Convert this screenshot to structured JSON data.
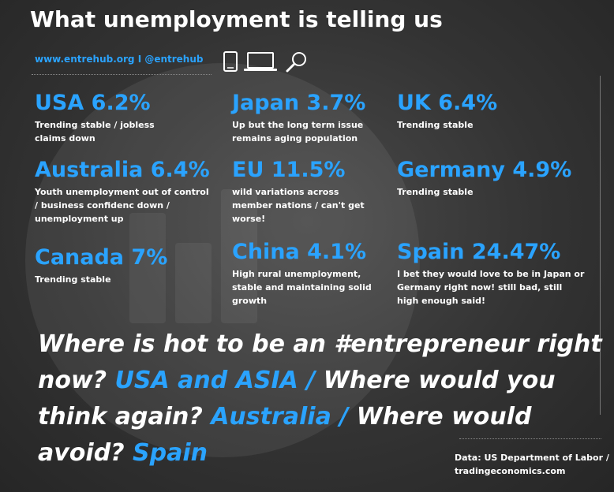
{
  "header": {
    "title": "What unemployment is telling us",
    "site": "www.entrehub.org I @entrehub"
  },
  "icons": [
    "tablet-icon",
    "laptop-icon",
    "search-icon"
  ],
  "countries": [
    {
      "name": "USA 6.2%",
      "desc": "Trending stable / jobless claims down"
    },
    {
      "name": "Japan 3.7%",
      "desc": "Up but the long term issue remains aging population"
    },
    {
      "name": "UK 6.4%",
      "desc": "Trending stable"
    },
    {
      "name": "Australia 6.4%",
      "desc": "Youth unemployment out of control / business confidenc down / unemployment up"
    },
    {
      "name": "EU 11.5%",
      "desc": "wild variations across member nations / can't get worse!"
    },
    {
      "name": "Germany 4.9%",
      "desc": "Trending stable"
    },
    {
      "name": "Canada 7%",
      "desc": "Trending stable"
    },
    {
      "name": "China 4.1%",
      "desc": "High rural unemployment, stable and maintaining solid growth"
    },
    {
      "name": "Spain 24.47%",
      "desc": "I bet they would love to be in Japan or Germany right now! still bad, still high enough said!"
    }
  ],
  "question": {
    "part1": "Where is hot to be an #entrepreneur right now?",
    "hl1": "USA and ASIA /",
    "part2": "Where would you think again?",
    "hl2": "Australia /",
    "part3": "Where would avoid?",
    "hl3": "Spain"
  },
  "source": "Data: US Department of Labor / tradingeconomics.com",
  "colors": {
    "accent": "#2aa3ff",
    "text": "#ffffff",
    "background": "#333333"
  }
}
